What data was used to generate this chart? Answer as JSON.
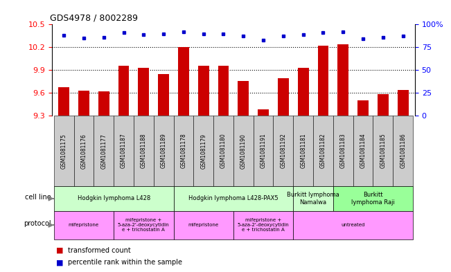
{
  "title": "GDS4978 / 8002289",
  "samples": [
    "GSM1081175",
    "GSM1081176",
    "GSM1081177",
    "GSM1081187",
    "GSM1081188",
    "GSM1081189",
    "GSM1081178",
    "GSM1081179",
    "GSM1081180",
    "GSM1081190",
    "GSM1081191",
    "GSM1081192",
    "GSM1081181",
    "GSM1081182",
    "GSM1081183",
    "GSM1081184",
    "GSM1081185",
    "GSM1081186"
  ],
  "transformed_count": [
    9.67,
    9.63,
    9.62,
    9.96,
    9.93,
    9.85,
    10.2,
    9.96,
    9.96,
    9.76,
    9.38,
    9.79,
    9.93,
    10.22,
    10.24,
    9.5,
    9.58,
    9.64
  ],
  "percentile_rank": [
    88,
    85,
    86,
    91,
    89,
    90,
    92,
    90,
    90,
    87,
    83,
    87,
    89,
    91,
    92,
    84,
    86,
    87
  ],
  "ylim_left": [
    9.3,
    10.5
  ],
  "ylim_right": [
    0,
    100
  ],
  "yticks_left": [
    9.3,
    9.6,
    9.9,
    10.2,
    10.5
  ],
  "yticks_right": [
    0,
    25,
    50,
    75,
    100
  ],
  "bar_color": "#cc0000",
  "dot_color": "#0000cc",
  "sample_box_color": "#cccccc",
  "cell_line_groups": [
    {
      "label": "Hodgkin lymphoma L428",
      "start": 0,
      "end": 6,
      "color": "#ccffcc"
    },
    {
      "label": "Hodgkin lymphoma L428-PAX5",
      "start": 6,
      "end": 12,
      "color": "#ccffcc"
    },
    {
      "label": "Burkitt lymphoma\nNamalwa",
      "start": 12,
      "end": 14,
      "color": "#ccffcc"
    },
    {
      "label": "Burkitt\nlymphoma Raji",
      "start": 14,
      "end": 18,
      "color": "#99ff99"
    }
  ],
  "protocol_groups": [
    {
      "label": "mifepristone",
      "start": 0,
      "end": 3,
      "color": "#ff99ff"
    },
    {
      "label": "mifepristone +\n5-aza-2'-deoxycytidin\ne + trichostatin A",
      "start": 3,
      "end": 6,
      "color": "#ff99ff"
    },
    {
      "label": "mifepristone",
      "start": 6,
      "end": 9,
      "color": "#ff99ff"
    },
    {
      "label": "mifepristone +\n5-aza-2'-deoxycytidin\ne + trichostatin A",
      "start": 9,
      "end": 12,
      "color": "#ff99ff"
    },
    {
      "label": "untreated",
      "start": 12,
      "end": 18,
      "color": "#ff99ff"
    }
  ]
}
